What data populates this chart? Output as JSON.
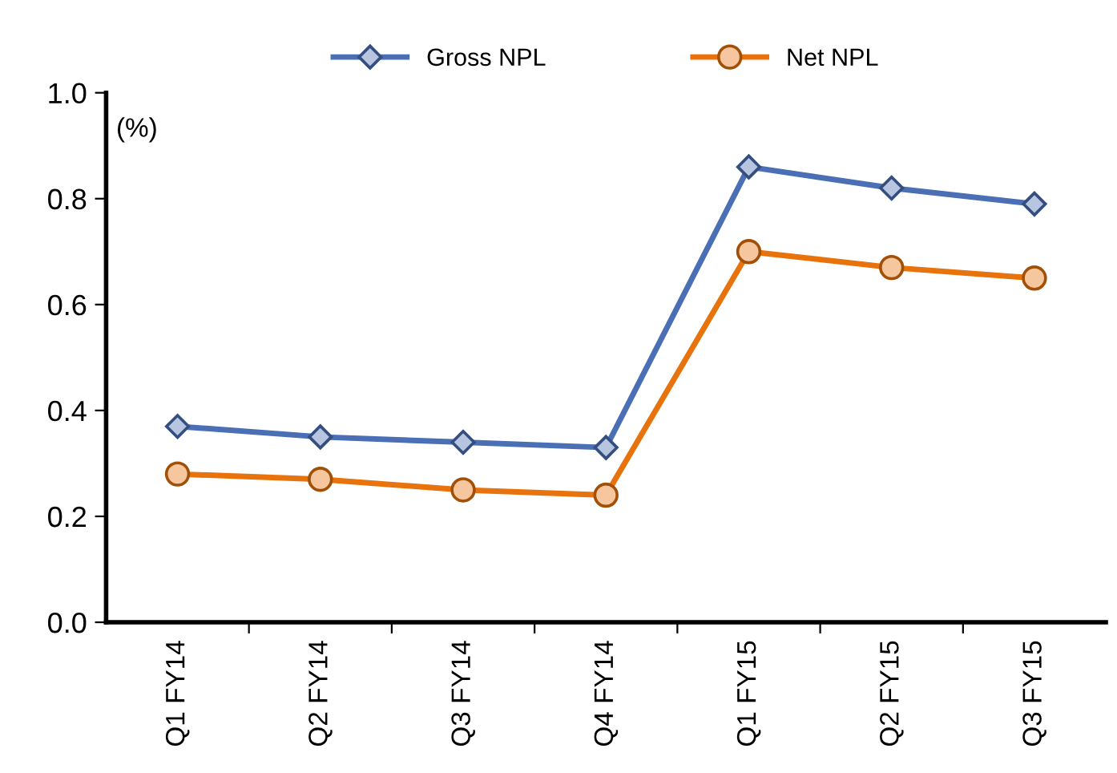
{
  "chart_data": {
    "type": "line",
    "ylabel": "(%)",
    "categories": [
      "Q1 FY14",
      "Q2 FY14",
      "Q3 FY14",
      "Q4 FY14",
      "Q1 FY15",
      "Q2 FY15",
      "Q3 FY15"
    ],
    "series": [
      {
        "name": "Gross NPL",
        "color": "#4a6fb5",
        "marker": "diamond",
        "values": [
          0.37,
          0.35,
          0.34,
          0.33,
          0.86,
          0.82,
          0.79
        ]
      },
      {
        "name": "Net NPL",
        "color": "#e8720c",
        "marker": "circle",
        "values": [
          0.28,
          0.27,
          0.25,
          0.24,
          0.7,
          0.67,
          0.65
        ]
      }
    ],
    "ylim": [
      0,
      1
    ],
    "yticks": [
      {
        "value": 0,
        "label": "0.0"
      },
      {
        "value": 0.2,
        "label": "0.2"
      },
      {
        "value": 0.4,
        "label": "0.4"
      },
      {
        "value": 0.6,
        "label": "0.6"
      },
      {
        "value": 0.8,
        "label": "0.8"
      },
      {
        "value": 1,
        "label": "1.0"
      }
    ],
    "grid": false,
    "legend": "top",
    "line_style": "solid"
  }
}
